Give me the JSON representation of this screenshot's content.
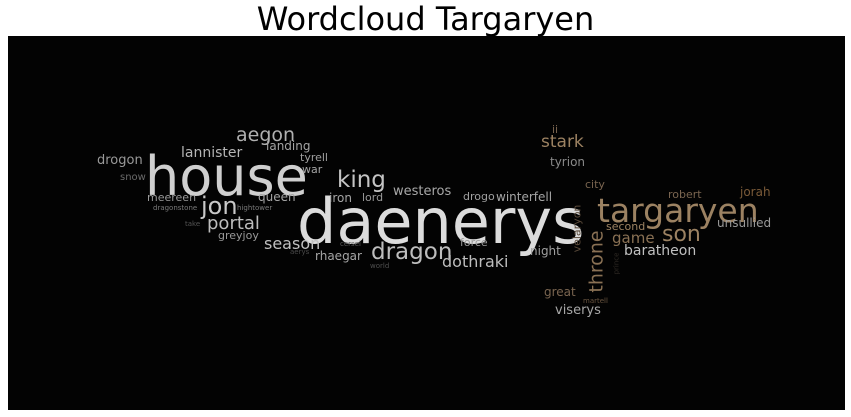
{
  "title": "Wordcloud Targaryen",
  "background_color": "#030303",
  "words": [
    {
      "text": "daenerys",
      "color": "#dcdcdc"
    },
    {
      "text": "house",
      "color": "#cfcfcf"
    },
    {
      "text": "targaryen",
      "color": "#9c8262"
    },
    {
      "text": "dragon",
      "color": "#bdbdbd"
    },
    {
      "text": "jon",
      "color": "#c8c8c8"
    },
    {
      "text": "son",
      "color": "#9c8262"
    },
    {
      "text": "king",
      "color": "#c4c4c4"
    },
    {
      "text": "aegon",
      "color": "#b0b0b0"
    },
    {
      "text": "throne",
      "color": "#8a7154"
    },
    {
      "text": "stark",
      "color": "#9c8262"
    },
    {
      "text": "portal",
      "color": "#bdbdbd"
    },
    {
      "text": "season",
      "color": "#c0c0c0"
    },
    {
      "text": "dothraki",
      "color": "#bdbdbd"
    },
    {
      "text": "game",
      "color": "#8a7154"
    },
    {
      "text": "lannister",
      "color": "#b5b5b5"
    },
    {
      "text": "baratheon",
      "color": "#c0c0c0"
    },
    {
      "text": "westeros",
      "color": "#a8a8a8"
    },
    {
      "text": "winterfell",
      "color": "#a5a5a5"
    },
    {
      "text": "drogon",
      "color": "#9a9a9a"
    },
    {
      "text": "landing",
      "color": "#a5a5a5"
    },
    {
      "text": "tyrell",
      "color": "#a0a0a0"
    },
    {
      "text": "tyrion",
      "color": "#8a8a8a"
    },
    {
      "text": "robert",
      "color": "#7a6550"
    },
    {
      "text": "jorah",
      "color": "#7a5a38"
    },
    {
      "text": "unsullied",
      "color": "#9a9a9a"
    },
    {
      "text": "viserys",
      "color": "#a8a8a8"
    },
    {
      "text": "great",
      "color": "#7a6550"
    },
    {
      "text": "velaryon",
      "color": "#5a4a3a"
    },
    {
      "text": "second",
      "color": "#9c8262"
    },
    {
      "text": "night",
      "color": "#a0a0a0"
    },
    {
      "text": "force",
      "color": "#9a9a9a"
    },
    {
      "text": "drogo",
      "color": "#a0a0a0"
    },
    {
      "text": "city",
      "color": "#7a6550"
    },
    {
      "text": "queen",
      "color": "#a5a5a5"
    },
    {
      "text": "war",
      "color": "#a5a5a5"
    },
    {
      "text": "iron",
      "color": "#a5a5a5"
    },
    {
      "text": "lord",
      "color": "#9a9a9a"
    },
    {
      "text": "meereen",
      "color": "#9a9a9a"
    },
    {
      "text": "greyjoy",
      "color": "#9a9a9a"
    },
    {
      "text": "rhaegar",
      "color": "#a5a5a5"
    },
    {
      "text": "snow",
      "color": "#6a6a6a"
    },
    {
      "text": "dragonstone",
      "color": "#7a7a7a"
    },
    {
      "text": "hightower",
      "color": "#7a7a7a"
    },
    {
      "text": "take",
      "color": "#555555"
    },
    {
      "text": "cersei",
      "color": "#5a5a5a"
    },
    {
      "text": "aerys",
      "color": "#4a4a4a"
    },
    {
      "text": "world",
      "color": "#505050"
    },
    {
      "text": "ii",
      "color": "#7a6550"
    },
    {
      "text": "martell",
      "color": "#6a5540"
    },
    {
      "text": "prince",
      "color": "#2f2a24"
    }
  ]
}
